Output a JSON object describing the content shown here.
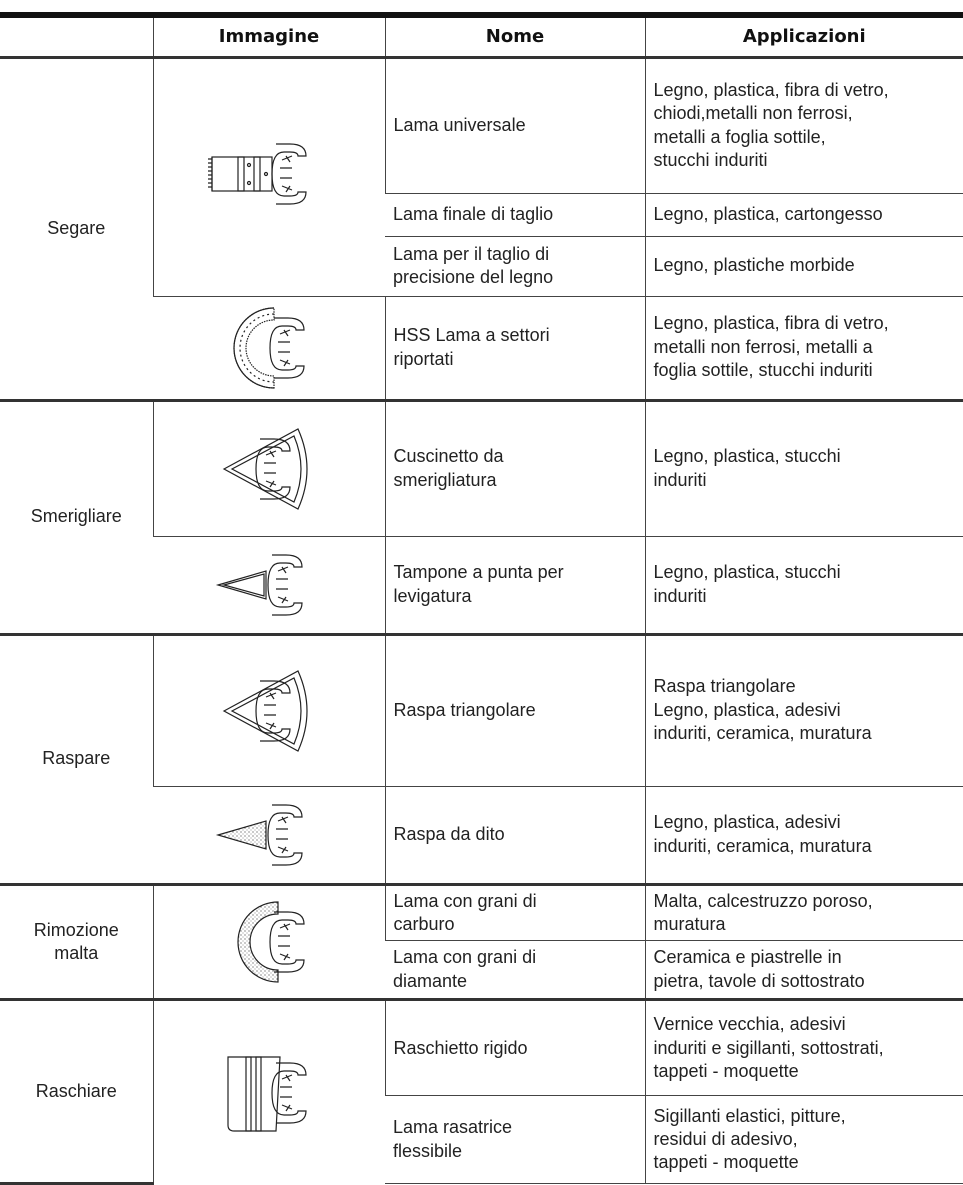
{
  "table": {
    "header": [
      "",
      "Immagine",
      "Nome",
      "Applicazioni"
    ],
    "groups": [
      {
        "label": "Segare",
        "items": [
          {
            "nome": "Lama universale",
            "applicazioni": "Legno, plastica, fibra di vetro,\nchiodi,metalli non ferrosi,\nmetalli a foglia sottile,\nstucchi induriti"
          },
          {
            "nome": "Lama finale di taglio",
            "applicazioni": "Legno, plastica, cartongesso"
          },
          {
            "nome": "Lama per il taglio di\nprecisione del legno",
            "applicazioni": "Legno, plastiche morbide"
          },
          {
            "nome": "HSS Lama a settori\nriportati",
            "applicazioni": "Legno, plastica, fibra di vetro,\nmetalli non ferrosi, metalli a\nfoglia sottile, stucchi induriti"
          }
        ]
      },
      {
        "label": "Smerigliare",
        "items": [
          {
            "nome": "Cuscinetto da\nsmerigliatura",
            "applicazioni": "Legno, plastica, stucchi\ninduriti"
          },
          {
            "nome": "Tampone a punta per\nlevigatura",
            "applicazioni": "Legno, plastica, stucchi\ninduriti"
          }
        ]
      },
      {
        "label": "Raspare",
        "items": [
          {
            "nome": "Raspa triangolare",
            "applicazioni": "Raspa triangolare\nLegno, plastica, adesivi\ninduriti, ceramica, muratura"
          },
          {
            "nome": "Raspa da dito",
            "applicazioni": "Legno, plastica, adesivi\ninduriti, ceramica, muratura"
          }
        ]
      },
      {
        "label": "Rimozione\nmalta",
        "items": [
          {
            "nome": "Lama con grani di\ncarburo",
            "applicazioni": "Malta, calcestruzzo poroso,\nmuratura"
          },
          {
            "nome": "Lama con grani di\ndiamante",
            "applicazioni": "Ceramica e piastrelle in\npietra, tavole di sottostrato"
          }
        ]
      },
      {
        "label": "Raschiare",
        "items": [
          {
            "nome": "Raschietto rigido",
            "applicazioni": "Vernice vecchia, adesivi\ninduriti e sigillanti, sottostrati,\ntappeti - moquette"
          },
          {
            "nome": "Lama rasatrice\nflessibile",
            "applicazioni": "Sigillanti elastici, pitture,\nresidui di adesivo,\ntappeti - moquette"
          }
        ]
      }
    ]
  }
}
